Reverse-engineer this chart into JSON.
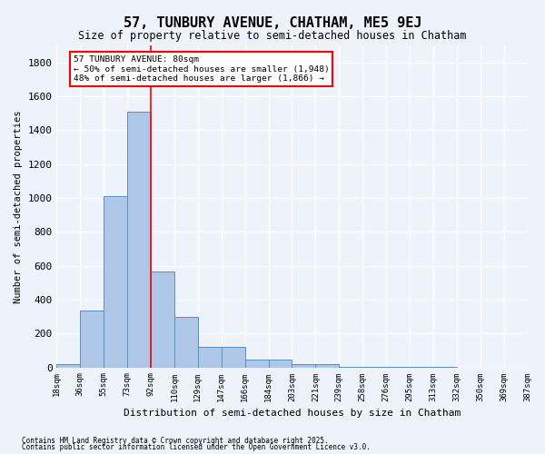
{
  "title": "57, TUNBURY AVENUE, CHATHAM, ME5 9EJ",
  "subtitle": "Size of property relative to semi-detached houses in Chatham",
  "xlabel": "Distribution of semi-detached houses by size in Chatham",
  "ylabel": "Number of semi-detached properties",
  "bar_color": "#aec6e8",
  "bar_edge_color": "#5a8fc2",
  "background_color": "#eef2fb",
  "grid_color": "#ffffff",
  "bin_labels": [
    "18sqm",
    "36sqm",
    "55sqm",
    "73sqm",
    "92sqm",
    "110sqm",
    "129sqm",
    "147sqm",
    "166sqm",
    "184sqm",
    "203sqm",
    "221sqm",
    "239sqm",
    "258sqm",
    "276sqm",
    "295sqm",
    "313sqm",
    "332sqm",
    "350sqm",
    "369sqm",
    "387sqm"
  ],
  "bar_heights": [
    20,
    335,
    1010,
    1510,
    565,
    300,
    120,
    120,
    45,
    45,
    20,
    20,
    5,
    3,
    2,
    1,
    1,
    0,
    0,
    0
  ],
  "red_line_x": 3.5,
  "ylim": [
    0,
    1900
  ],
  "yticks": [
    0,
    200,
    400,
    600,
    800,
    1000,
    1200,
    1400,
    1600,
    1800
  ],
  "annotation_text": "57 TUNBURY AVENUE: 80sqm\n← 50% of semi-detached houses are smaller (1,948)\n48% of semi-detached houses are larger (1,866) →",
  "footnote1": "Contains HM Land Registry data © Crown copyright and database right 2025.",
  "footnote2": "Contains public sector information licensed under the Open Government Licence v3.0."
}
